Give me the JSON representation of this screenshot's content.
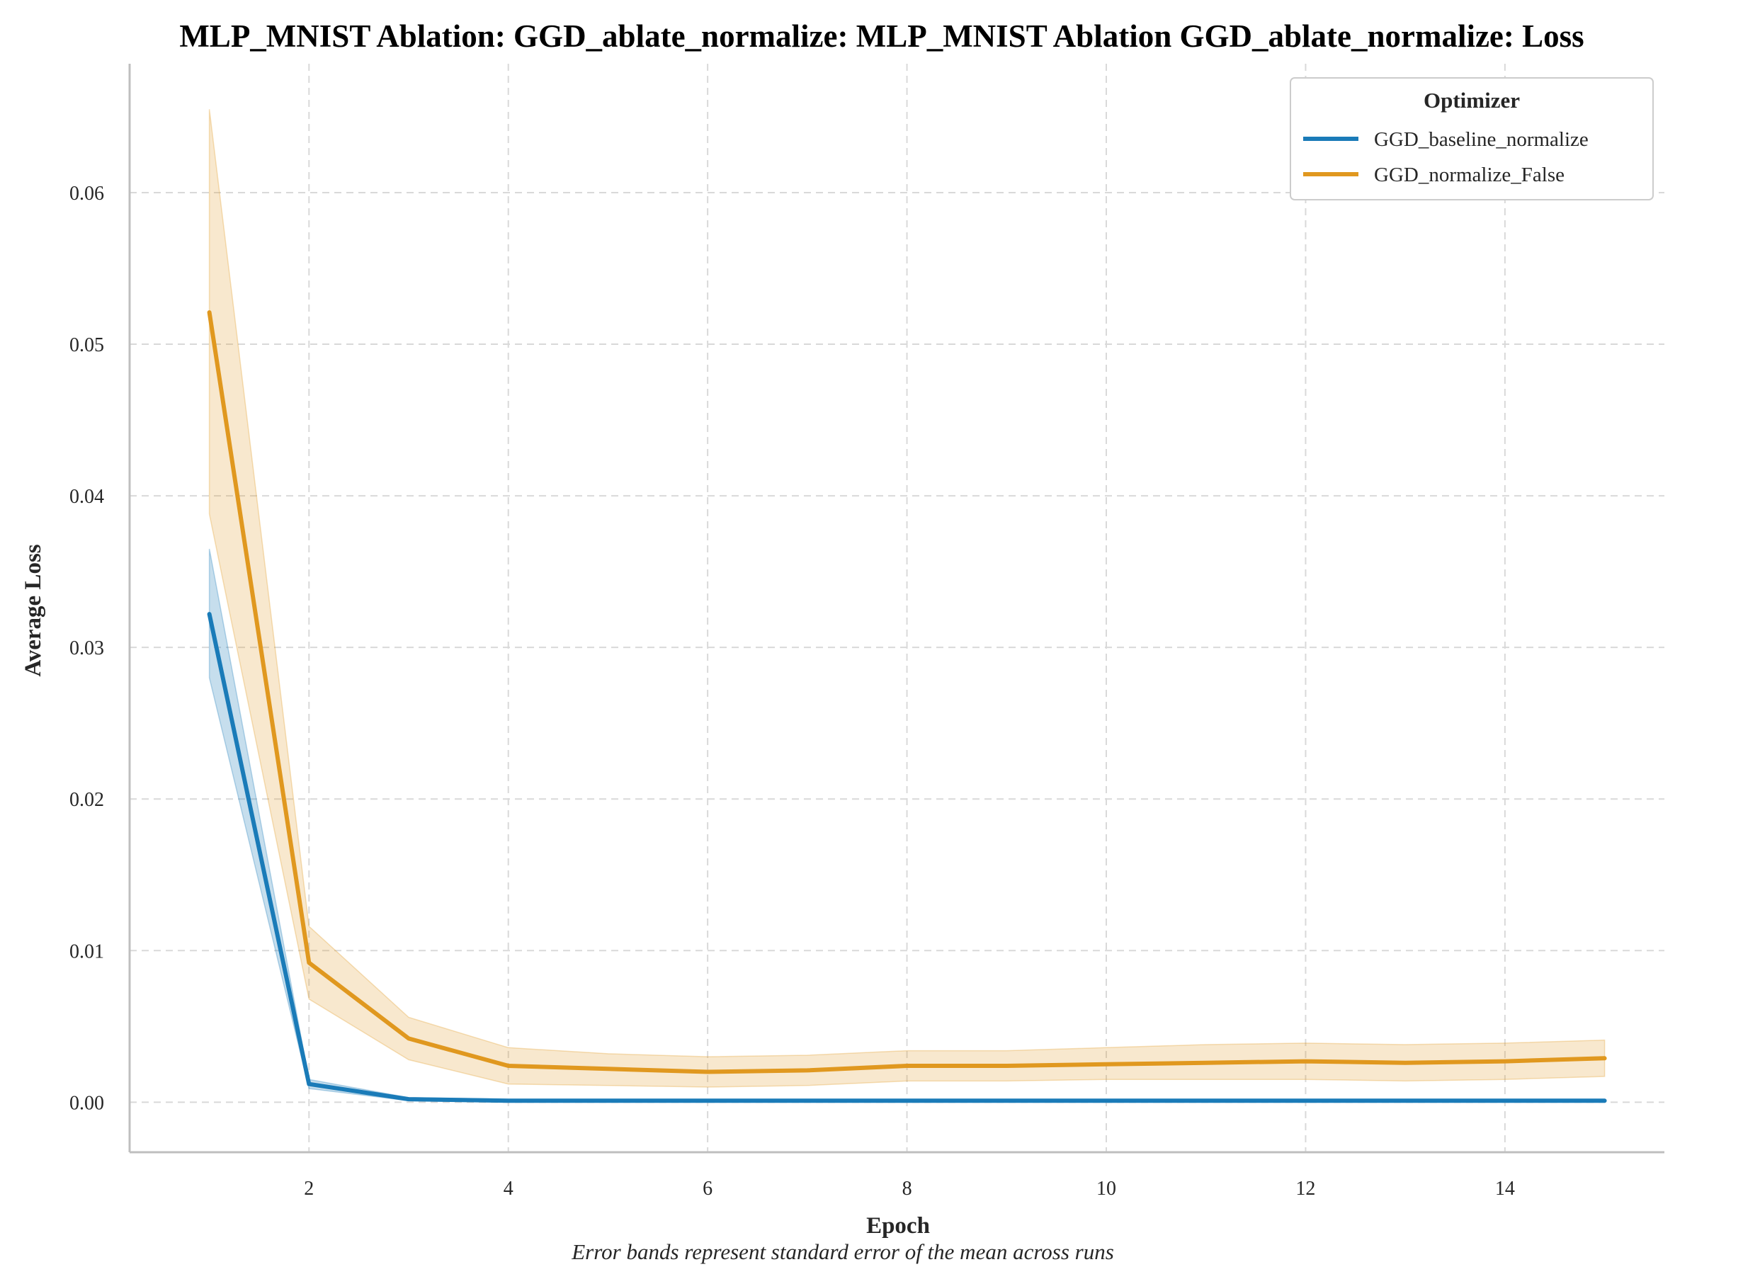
{
  "chart_data": {
    "type": "line",
    "title": "MLP_MNIST Ablation: GGD_ablate_normalize: MLP_MNIST Ablation GGD_ablate_normalize: Loss",
    "xlabel": "Epoch",
    "ylabel": "Average Loss",
    "caption": "Error bands represent standard error of the mean across runs",
    "xlim": [
      0.2,
      15.6
    ],
    "ylim": [
      -0.0033,
      0.0685
    ],
    "xticks": [
      2,
      4,
      6,
      8,
      10,
      12,
      14
    ],
    "yticks": [
      0.0,
      0.01,
      0.02,
      0.03,
      0.04,
      0.05,
      0.06
    ],
    "ytick_labels": [
      "0.00",
      "0.01",
      "0.02",
      "0.03",
      "0.04",
      "0.05",
      "0.06"
    ],
    "grid": true,
    "legend": {
      "title": "Optimizer",
      "placement": "top-right"
    },
    "x": [
      1,
      2,
      3,
      4,
      5,
      6,
      7,
      8,
      9,
      10,
      11,
      12,
      13,
      14,
      15
    ],
    "series": [
      {
        "name": "GGD_baseline_normalize",
        "color": "#1a7bb8",
        "values": [
          0.0322,
          0.0012,
          0.0002,
          0.0001,
          0.0001,
          0.0001,
          0.0001,
          0.0001,
          0.0001,
          0.0001,
          0.0001,
          0.0001,
          0.0001,
          0.0001,
          0.0001
        ],
        "lower": [
          0.028,
          0.0009,
          0.0001,
          0.0,
          0.0,
          0.0,
          0.0,
          0.0,
          0.0,
          0.0,
          0.0,
          0.0,
          0.0,
          0.0,
          0.0
        ],
        "upper": [
          0.0365,
          0.0015,
          0.0003,
          0.0002,
          0.0002,
          0.0002,
          0.0002,
          0.0002,
          0.0002,
          0.0002,
          0.0002,
          0.0002,
          0.0002,
          0.0002,
          0.0002
        ]
      },
      {
        "name": "GGD_normalize_False",
        "color": "#e0981f",
        "values": [
          0.0521,
          0.0092,
          0.0042,
          0.0024,
          0.0022,
          0.002,
          0.0021,
          0.0024,
          0.0024,
          0.0025,
          0.0026,
          0.0027,
          0.0026,
          0.0027,
          0.0029
        ],
        "lower": [
          0.0388,
          0.0068,
          0.0028,
          0.0012,
          0.0011,
          0.001,
          0.0011,
          0.0014,
          0.0014,
          0.0015,
          0.0015,
          0.0015,
          0.0014,
          0.0015,
          0.0017
        ],
        "upper": [
          0.0655,
          0.0116,
          0.0056,
          0.0036,
          0.0032,
          0.003,
          0.0031,
          0.0034,
          0.0034,
          0.0036,
          0.0038,
          0.0039,
          0.0038,
          0.0039,
          0.0041
        ]
      }
    ]
  }
}
